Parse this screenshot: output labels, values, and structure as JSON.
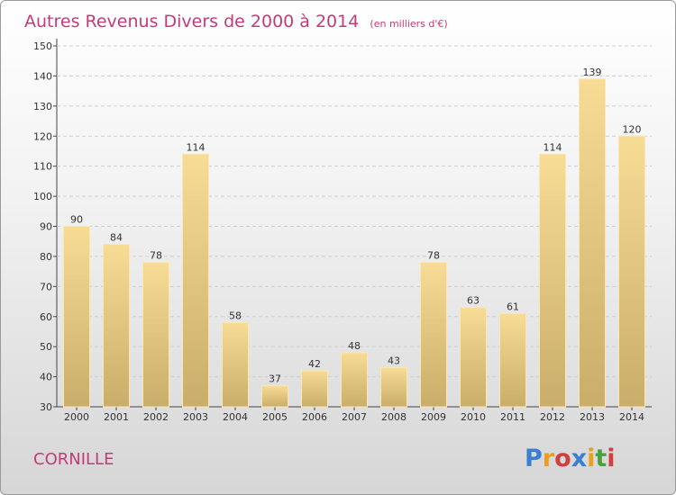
{
  "chart_data": {
    "type": "bar",
    "title": "Autres Revenus Divers de 2000 à 2014",
    "unit": "(en milliers d'€)",
    "categories": [
      "2000",
      "2001",
      "2002",
      "2003",
      "2004",
      "2005",
      "2006",
      "2007",
      "2008",
      "2009",
      "2010",
      "2011",
      "2012",
      "2013",
      "2014"
    ],
    "values": [
      90,
      84,
      78,
      114,
      58,
      37,
      42,
      48,
      43,
      78,
      63,
      61,
      114,
      139,
      120
    ],
    "ylim": [
      30,
      150
    ],
    "yticks": [
      30,
      40,
      50,
      60,
      70,
      80,
      90,
      100,
      110,
      120,
      130,
      140,
      150
    ],
    "grid": true,
    "bar_color": "#e8c879"
  },
  "footer": {
    "commune": "CORNILLE",
    "logo": "Proxiti",
    "logo_colors": [
      "#3a7fd0",
      "#e8a020",
      "#d04040",
      "#3a7fd0",
      "#e8a020",
      "#4aa040",
      "#d04040"
    ]
  }
}
